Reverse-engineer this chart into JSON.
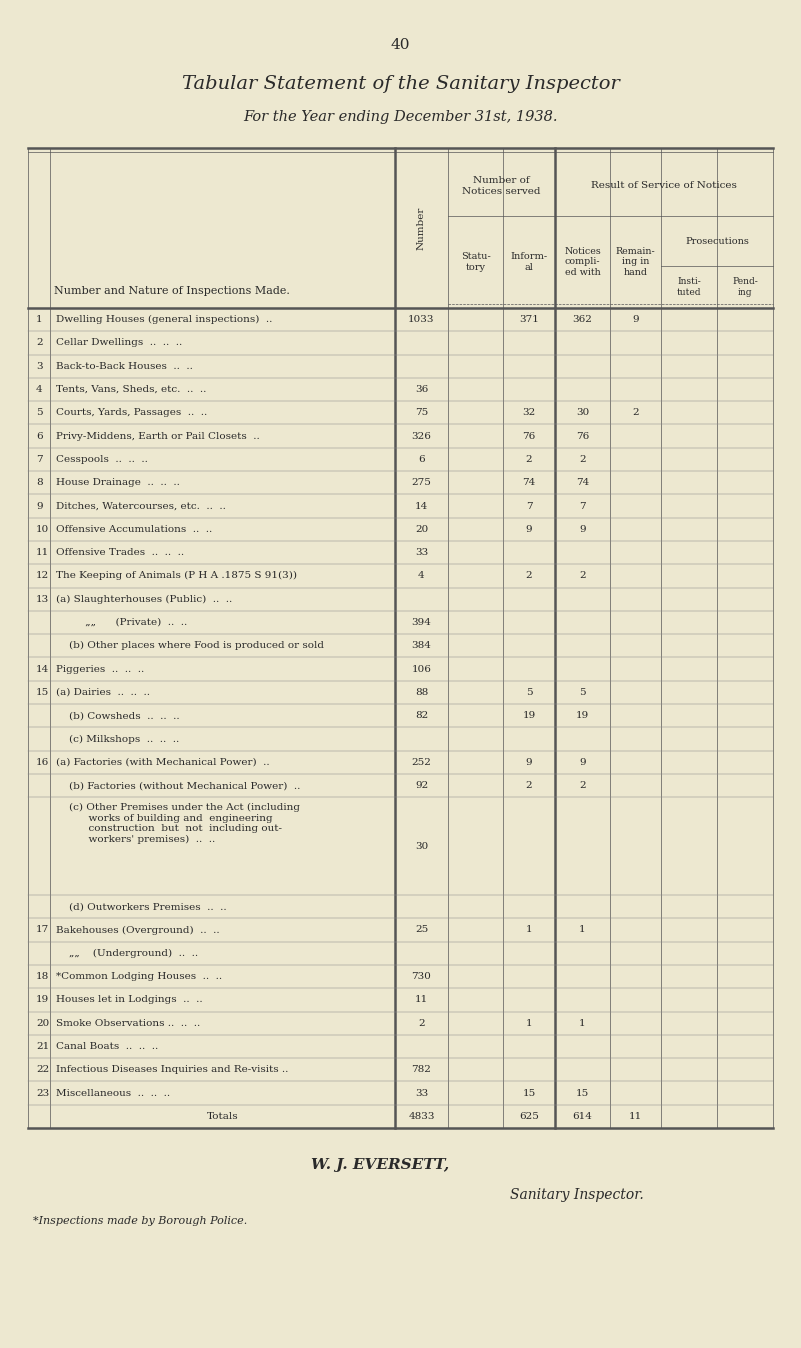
{
  "page_number": "40",
  "title": "Tabular Statement of the Sanitary Inspector",
  "subtitle": "For the Year ending December 31st, 1938.",
  "bg_color": "#ede8d0",
  "text_color": "#2a2a2a",
  "rows": [
    {
      "num": "1",
      "desc": "Dwelling Houses (general inspections)  ..",
      "number": "1033",
      "statutory": "",
      "informal": "371",
      "complied": "362",
      "remaining": "9",
      "instituted": "",
      "pending": ""
    },
    {
      "num": "2",
      "desc": "Cellar Dwellings  ..  ..  ..",
      "number": "",
      "statutory": "",
      "informal": "",
      "complied": "",
      "remaining": "",
      "instituted": "",
      "pending": ""
    },
    {
      "num": "3",
      "desc": "Back-to-Back Houses  ..  ..",
      "number": "",
      "statutory": "",
      "informal": "",
      "complied": "",
      "remaining": "",
      "instituted": "",
      "pending": ""
    },
    {
      "num": "4",
      "desc": "Tents, Vans, Sheds, etc.  ..  ..",
      "number": "36",
      "statutory": "",
      "informal": "",
      "complied": "",
      "remaining": "",
      "instituted": "",
      "pending": ""
    },
    {
      "num": "5",
      "desc": "Courts, Yards, Passages  ..  ..",
      "number": "75",
      "statutory": "",
      "informal": "32",
      "complied": "30",
      "remaining": "2",
      "instituted": "",
      "pending": ""
    },
    {
      "num": "6",
      "desc": "Privy-Middens, Earth or Pail Closets  ..",
      "number": "326",
      "statutory": "",
      "informal": "76",
      "complied": "76",
      "remaining": "",
      "instituted": "",
      "pending": ""
    },
    {
      "num": "7",
      "desc": "Cesspools  ..  ..  ..",
      "number": "6",
      "statutory": "",
      "informal": "2",
      "complied": "2",
      "remaining": "",
      "instituted": "",
      "pending": ""
    },
    {
      "num": "8",
      "desc": "House Drainage  ..  ..  ..",
      "number": "275",
      "statutory": "",
      "informal": "74",
      "complied": "74",
      "remaining": "",
      "instituted": "",
      "pending": ""
    },
    {
      "num": "9",
      "desc": "Ditches, Watercourses, etc.  ..  ..",
      "number": "14",
      "statutory": "",
      "informal": "7",
      "complied": "7",
      "remaining": "",
      "instituted": "",
      "pending": ""
    },
    {
      "num": "10",
      "desc": "Offensive Accumulations  ..  ..",
      "number": "20",
      "statutory": "",
      "informal": "9",
      "complied": "9",
      "remaining": "",
      "instituted": "",
      "pending": ""
    },
    {
      "num": "11",
      "desc": "Offensive Trades  ..  ..  ..",
      "number": "33",
      "statutory": "",
      "informal": "",
      "complied": "",
      "remaining": "",
      "instituted": "",
      "pending": ""
    },
    {
      "num": "12",
      "desc": "The Keeping of Animals (P H A .1875 S 91(3))",
      "number": "4",
      "statutory": "",
      "informal": "2",
      "complied": "2",
      "remaining": "",
      "instituted": "",
      "pending": ""
    },
    {
      "num": "13",
      "desc": "(a) Slaughterhouses (Public)  ..  ..",
      "number": "",
      "statutory": "",
      "informal": "",
      "complied": "",
      "remaining": "",
      "instituted": "",
      "pending": ""
    },
    {
      "num": "",
      "desc": "         „„      (Private)  ..  ..",
      "number": "394",
      "statutory": "",
      "informal": "",
      "complied": "",
      "remaining": "",
      "instituted": "",
      "pending": ""
    },
    {
      "num": "",
      "desc": "    (b) Other places where Food is produced or sold",
      "number": "384",
      "statutory": "",
      "informal": "",
      "complied": "",
      "remaining": "",
      "instituted": "",
      "pending": ""
    },
    {
      "num": "14",
      "desc": "Piggeries  ..  ..  ..",
      "number": "106",
      "statutory": "",
      "informal": "",
      "complied": "",
      "remaining": "",
      "instituted": "",
      "pending": ""
    },
    {
      "num": "15",
      "desc": "(a) Dairies  ..  ..  ..",
      "number": "88",
      "statutory": "",
      "informal": "5",
      "complied": "5",
      "remaining": "",
      "instituted": "",
      "pending": ""
    },
    {
      "num": "",
      "desc": "    (b) Cowsheds  ..  ..  ..",
      "number": "82",
      "statutory": "",
      "informal": "19",
      "complied": "19",
      "remaining": "",
      "instituted": "",
      "pending": ""
    },
    {
      "num": "",
      "desc": "    (c) Milkshops  ..  ..  ..",
      "number": "",
      "statutory": "",
      "informal": "",
      "complied": "",
      "remaining": "",
      "instituted": "",
      "pending": ""
    },
    {
      "num": "16",
      "desc": "(a) Factories (with Mechanical Power)  ..",
      "number": "252",
      "statutory": "",
      "informal": "9",
      "complied": "9",
      "remaining": "",
      "instituted": "",
      "pending": ""
    },
    {
      "num": "",
      "desc": "    (b) Factories (without Mechanical Power)  ..",
      "number": "92",
      "statutory": "",
      "informal": "2",
      "complied": "2",
      "remaining": "",
      "instituted": "",
      "pending": ""
    },
    {
      "num": "",
      "desc": "    (c) Other Premises under the Act (including\n          works of building and  engineering\n          construction  but  not  including out-\n          workers' premises)  ..  ..",
      "number": "30",
      "statutory": "",
      "informal": "",
      "complied": "",
      "remaining": "",
      "instituted": "",
      "pending": "",
      "multiline": true
    },
    {
      "num": "",
      "desc": "    (d) Outworkers Premises  ..  ..",
      "number": "",
      "statutory": "",
      "informal": "",
      "complied": "",
      "remaining": "",
      "instituted": "",
      "pending": ""
    },
    {
      "num": "17",
      "desc": "Bakehouses (Overground)  ..  ..",
      "number": "25",
      "statutory": "",
      "informal": "1",
      "complied": "1",
      "remaining": "",
      "instituted": "",
      "pending": ""
    },
    {
      "num": "",
      "desc": "    „„    (Underground)  ..  ..",
      "number": "",
      "statutory": "",
      "informal": "",
      "complied": "",
      "remaining": "",
      "instituted": "",
      "pending": ""
    },
    {
      "num": "18",
      "desc": "*Common Lodging Houses  ..  ..",
      "number": "730",
      "statutory": "",
      "informal": "",
      "complied": "",
      "remaining": "",
      "instituted": "",
      "pending": ""
    },
    {
      "num": "19",
      "desc": "Houses let in Lodgings  ..  ..",
      "number": "11",
      "statutory": "",
      "informal": "",
      "complied": "",
      "remaining": "",
      "instituted": "",
      "pending": ""
    },
    {
      "num": "20",
      "desc": "Smoke Observations ..  ..  ..",
      "number": "2",
      "statutory": "",
      "informal": "1",
      "complied": "1",
      "remaining": "",
      "instituted": "",
      "pending": ""
    },
    {
      "num": "21",
      "desc": "Canal Boats  ..  ..  ..",
      "number": "",
      "statutory": "",
      "informal": "",
      "complied": "",
      "remaining": "",
      "instituted": "",
      "pending": ""
    },
    {
      "num": "22",
      "desc": "Infectious Diseases Inquiries and Re-visits ..",
      "number": "782",
      "statutory": "",
      "informal": "",
      "complied": "",
      "remaining": "",
      "instituted": "",
      "pending": ""
    },
    {
      "num": "23",
      "desc": "Miscellaneous  ..  ..  ..",
      "number": "33",
      "statutory": "",
      "informal": "15",
      "complied": "15",
      "remaining": "",
      "instituted": "",
      "pending": ""
    },
    {
      "num": "",
      "desc": "Totals",
      "number": "4833",
      "statutory": "",
      "informal": "625",
      "complied": "614",
      "remaining": "11",
      "instituted": "",
      "pending": "",
      "is_total": true
    }
  ],
  "footer_name": "W. J. EVERSETT,",
  "footer_title": "Sanitary Inspector.",
  "footnote": "*Inspections made by Borough Police."
}
